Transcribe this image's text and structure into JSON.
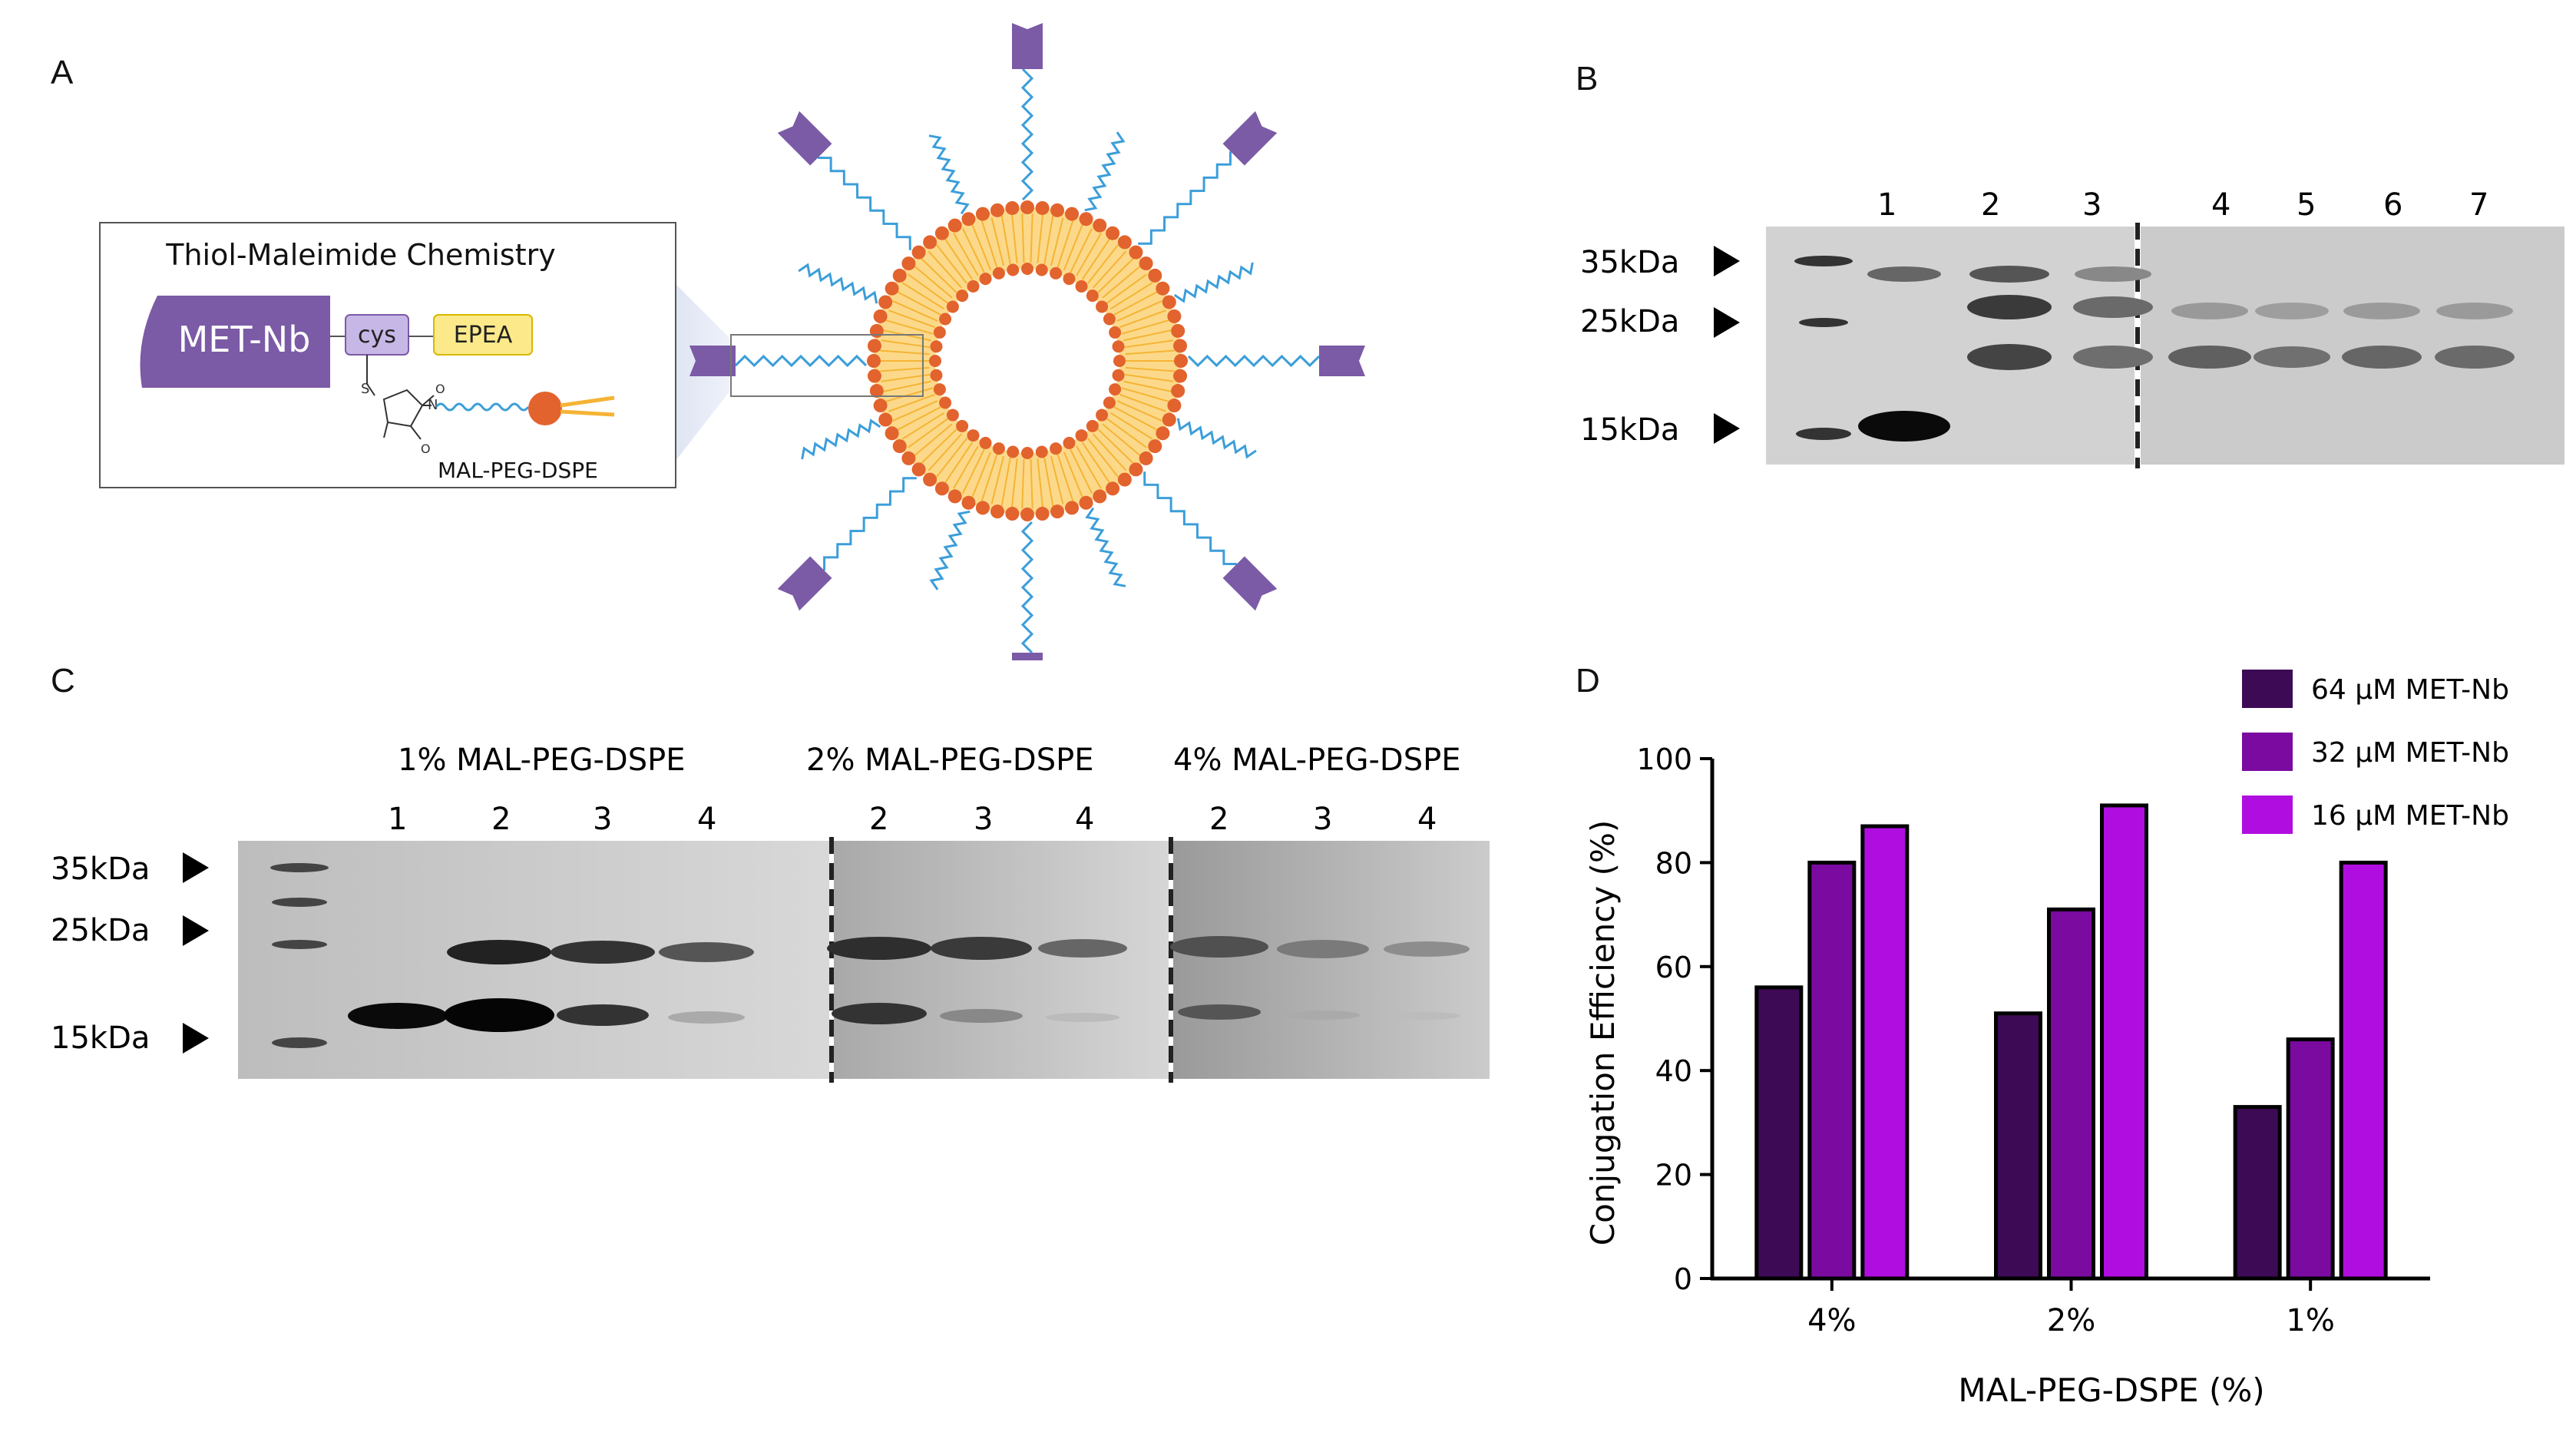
{
  "panels": {
    "A": "A",
    "B": "B",
    "C": "C",
    "D": "D"
  },
  "panelA": {
    "box_title": "Thiol-Maleimide Chemistry",
    "nb_label": "MET-Nb",
    "cys_label": "cys",
    "epea_label": "EPEA",
    "lipid_label": "MAL-PEG-DSPE",
    "colors": {
      "nanobody": "#7b5aa6",
      "cys_fill": "#c7b7e6",
      "epea_fill": "#fbe98a",
      "peg": "#3c9ed9",
      "head": "#e2632d",
      "tail": "#f5b434"
    }
  },
  "panelB": {
    "lanes": [
      "1",
      "2",
      "3",
      "4",
      "5",
      "6",
      "7"
    ],
    "markers": [
      "35kDa",
      "25kDa",
      "15kDa"
    ]
  },
  "panelC": {
    "groups": [
      "1% MAL-PEG-DSPE",
      "2% MAL-PEG-DSPE",
      "4% MAL-PEG-DSPE"
    ],
    "lanes_group1": [
      "1",
      "2",
      "3",
      "4"
    ],
    "lanes_group2": [
      "2",
      "3",
      "4"
    ],
    "lanes_group3": [
      "2",
      "3",
      "4"
    ],
    "markers": [
      "35kDa",
      "25kDa",
      "15kDa"
    ]
  },
  "chart_data": {
    "type": "bar",
    "categories": [
      "4%",
      "2%",
      "1%"
    ],
    "series": [
      {
        "name": "64 µM MET-Nb",
        "color": "#3d0a55",
        "values": [
          56,
          51,
          33
        ]
      },
      {
        "name": "32 µM MET-Nb",
        "color": "#7a0aa0",
        "values": [
          80,
          71,
          46
        ]
      },
      {
        "name": "16 µM MET-Nb",
        "color": "#b00ee0",
        "values": [
          87,
          91,
          80
        ]
      }
    ],
    "xlabel": "MAL-PEG-DSPE (%)",
    "ylabel": "Conjugation Efficiency (%)",
    "ylim": [
      0,
      100
    ],
    "yticks": [
      "0",
      "20",
      "40",
      "60",
      "80",
      "100"
    ],
    "legend_position": "top-right",
    "grid": false
  }
}
